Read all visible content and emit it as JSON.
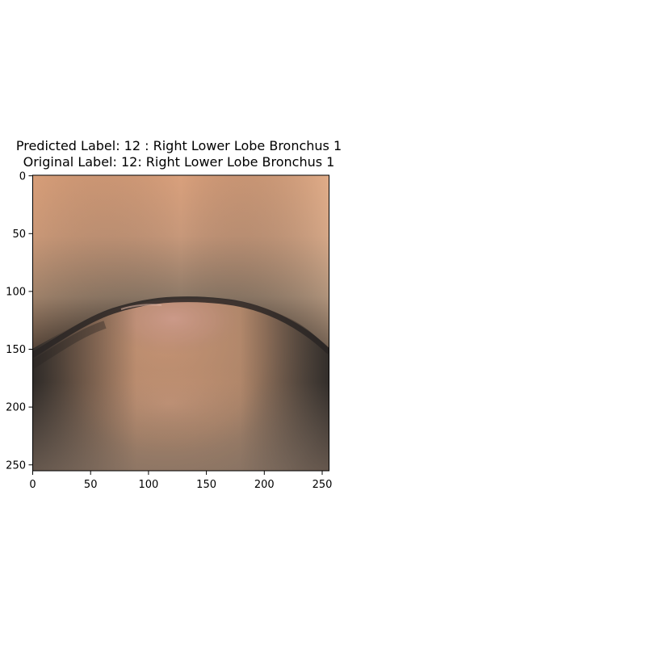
{
  "figure": {
    "title_line_1": "Predicted Label: 12 : Right Lower Lobe Bronchus 1",
    "title_line_2": "Original Label: 12: Right Lower Lobe Bronchus 1"
  },
  "image_axes": {
    "x_ticks": [
      "0",
      "50",
      "100",
      "150",
      "200",
      "250"
    ],
    "y_ticks": [
      "0",
      "50",
      "100",
      "150",
      "200",
      "250"
    ],
    "x_range": [
      0,
      256
    ],
    "y_range": [
      0,
      256
    ],
    "image_content": "bronchoscopy-view-airway-lumen"
  }
}
